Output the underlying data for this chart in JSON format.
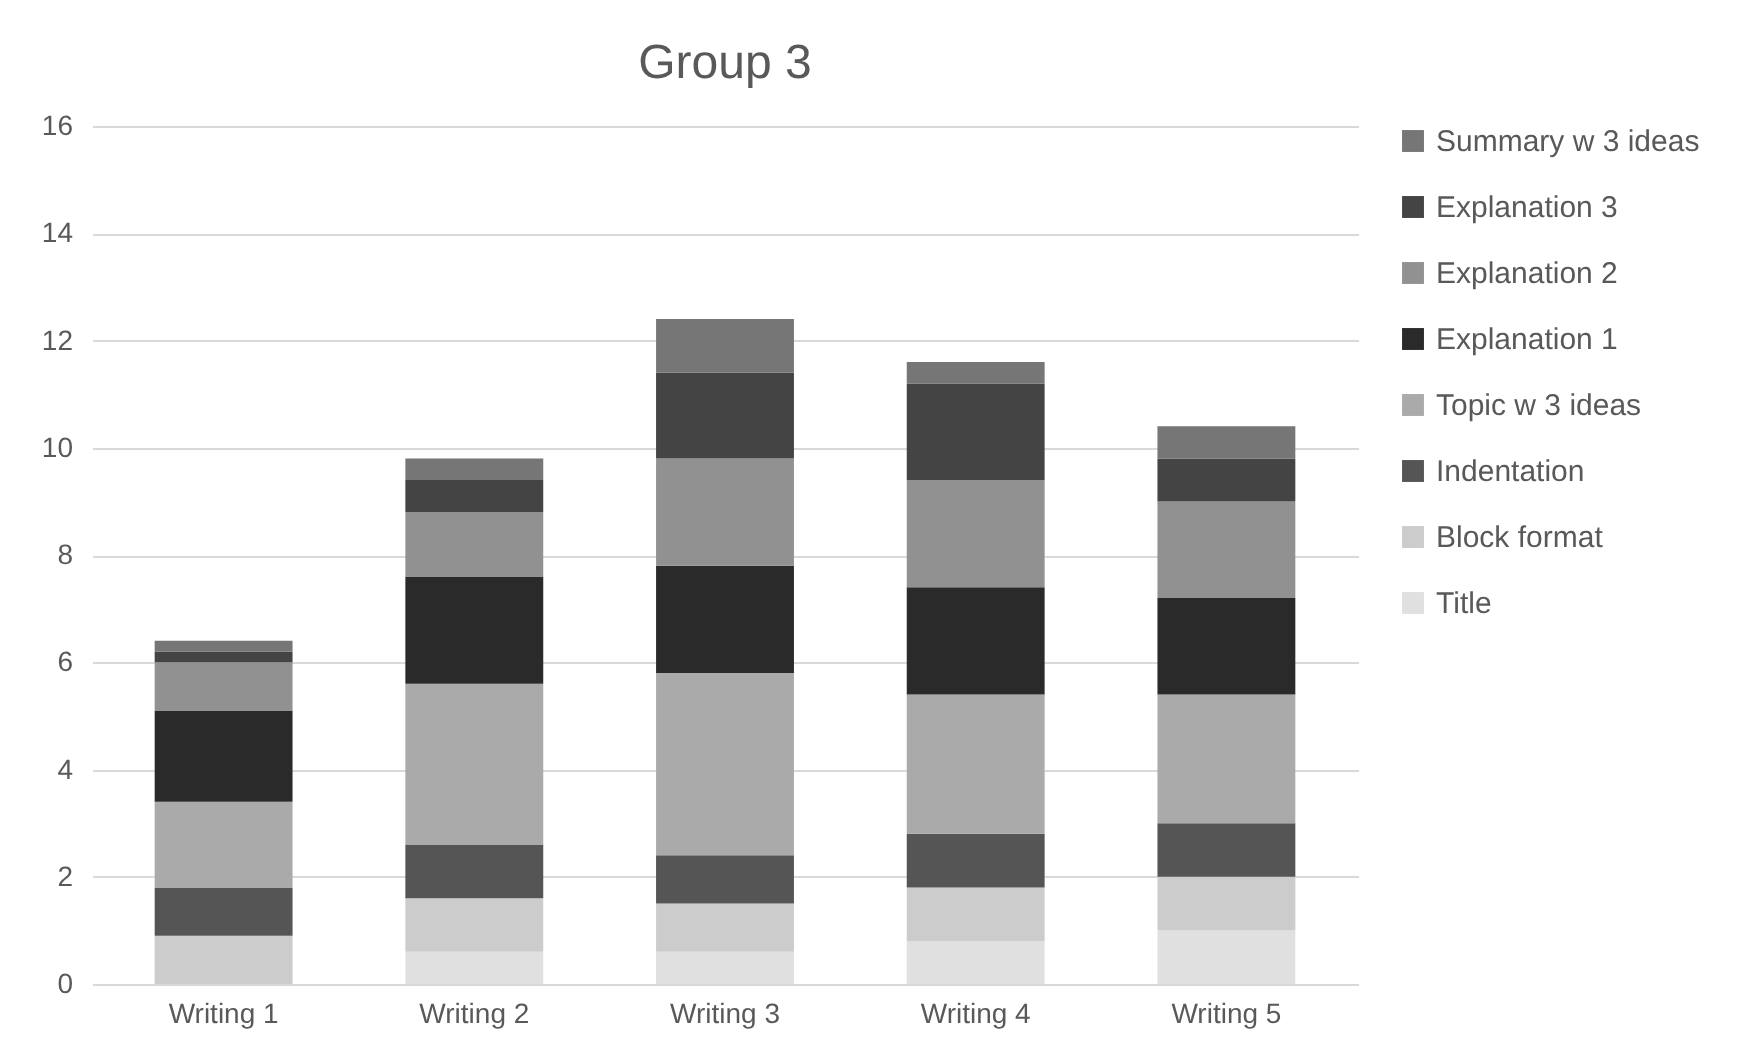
{
  "chart_data": {
    "type": "bar",
    "title": "Group 3",
    "categories": [
      "Writing 1",
      "Writing 2",
      "Writing 3",
      "Writing 4",
      "Writing 5"
    ],
    "stacked": true,
    "series": [
      {
        "name": "Title",
        "color": "#e0e0e0",
        "values": [
          0,
          0.6,
          0.6,
          0.8,
          1.0
        ]
      },
      {
        "name": "Block format",
        "color": "#cccccc",
        "values": [
          0.9,
          1.0,
          0.9,
          1.0,
          1.0
        ]
      },
      {
        "name": "Indentation",
        "color": "#555555",
        "values": [
          0.9,
          1.0,
          0.9,
          1.0,
          1.0
        ]
      },
      {
        "name": "Topic w 3 ideas",
        "color": "#aaaaaa",
        "values": [
          1.6,
          3.0,
          3.4,
          2.6,
          2.4
        ]
      },
      {
        "name": "Explanation 1",
        "color": "#2a2a2a",
        "values": [
          1.7,
          2.0,
          2.0,
          2.0,
          1.8
        ]
      },
      {
        "name": "Explanation 2",
        "color": "#919191",
        "values": [
          0.9,
          1.2,
          2.0,
          2.0,
          1.8
        ]
      },
      {
        "name": "Explanation 3",
        "color": "#444444",
        "values": [
          0.2,
          0.6,
          1.6,
          1.8,
          0.8
        ]
      },
      {
        "name": "Summary w 3 ideas",
        "color": "#767676",
        "values": [
          0.2,
          0.4,
          1.0,
          0.4,
          0.6
        ]
      }
    ],
    "ylim": [
      0,
      16
    ],
    "yticks": [
      0,
      2,
      4,
      6,
      8,
      10,
      12,
      14,
      16
    ],
    "grid": "y",
    "legend": "right"
  }
}
